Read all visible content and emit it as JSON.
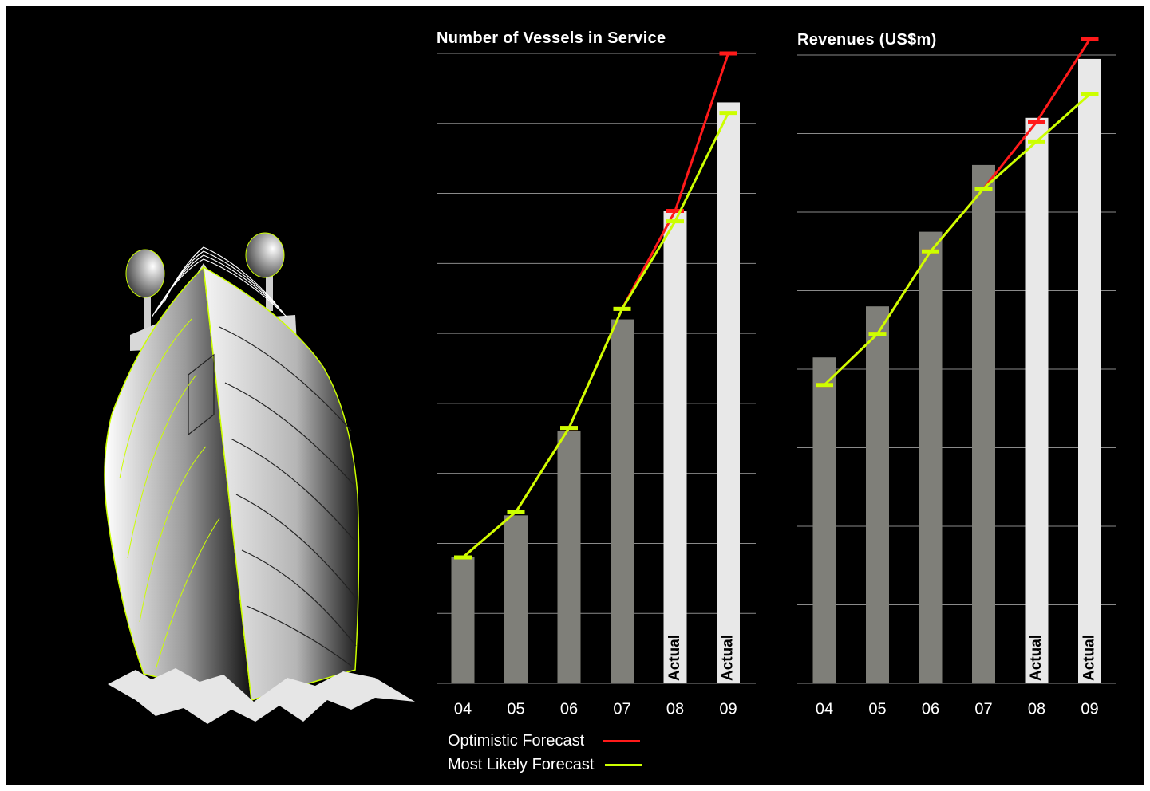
{
  "colors": {
    "background": "#000000",
    "forecast_bar": "#7f7f79",
    "actual_bar": "#e8e8e8",
    "gridline": "#8a8a8a",
    "optimistic": "#ff1a1a",
    "most_likely": "#ccff00",
    "text": "#ffffff"
  },
  "legend": {
    "optimistic_label": "Optimistic Forecast",
    "most_likely_label": "Most Likely Forecast"
  },
  "chart_data": [
    {
      "type": "bar",
      "title": "Number of Vessels in Service",
      "categories": [
        "04",
        "05",
        "06",
        "07",
        "08",
        "09"
      ],
      "bar_kind": [
        "forecast",
        "forecast",
        "forecast",
        "forecast",
        "actual",
        "actual"
      ],
      "bar_label": [
        "",
        "",
        "",
        "",
        "Actual",
        "Actual"
      ],
      "values": [
        1.8,
        2.4,
        3.6,
        5.2,
        6.75,
        8.3
      ],
      "ylim": [
        0,
        9
      ],
      "grid_step": 1,
      "grid": true,
      "series": [
        {
          "key": "optimistic",
          "values": [
            1.8,
            2.45,
            3.65,
            5.35,
            6.75,
            9.0
          ]
        },
        {
          "key": "most_likely",
          "values": [
            1.8,
            2.45,
            3.65,
            5.35,
            6.6,
            8.15
          ]
        }
      ]
    },
    {
      "type": "bar",
      "title": "Revenues (US$m)",
      "categories": [
        "04",
        "05",
        "06",
        "07",
        "08",
        "09"
      ],
      "bar_kind": [
        "forecast",
        "forecast",
        "forecast",
        "forecast",
        "actual",
        "actual"
      ],
      "bar_label": [
        "",
        "",
        "",
        "",
        "Actual",
        "Actual"
      ],
      "values": [
        4.15,
        4.8,
        5.75,
        6.6,
        7.2,
        7.95
      ],
      "ylim": [
        0,
        8
      ],
      "grid_step": 1,
      "grid": true,
      "series": [
        {
          "key": "optimistic",
          "values": [
            3.8,
            4.45,
            5.5,
            6.3,
            7.15,
            8.2
          ]
        },
        {
          "key": "most_likely",
          "values": [
            3.8,
            4.45,
            5.5,
            6.3,
            6.9,
            7.5
          ]
        }
      ]
    }
  ]
}
